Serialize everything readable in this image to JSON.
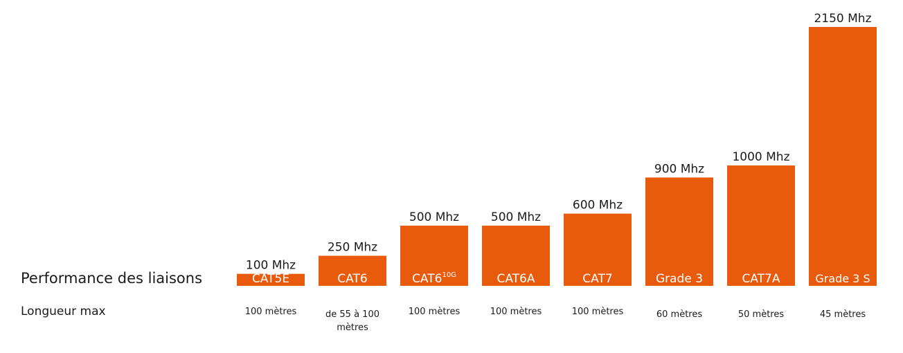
{
  "labels": {
    "performance": "Performance des liaisons",
    "length": "Longueur max"
  },
  "colors": {
    "bar": "#e95b0c",
    "bar_label": "#ffffff",
    "text": "#1a1a1a"
  },
  "chart_data": {
    "type": "bar",
    "categories": [
      "CAT5E",
      "CAT6",
      "CAT6",
      "CAT6A",
      "CAT7",
      "Grade 3",
      "CAT7A",
      "Grade 3 S"
    ],
    "category_superscripts": [
      "",
      "",
      "10G",
      "",
      "",
      "",
      "",
      ""
    ],
    "values": [
      100,
      250,
      500,
      500,
      600,
      900,
      1000,
      2150
    ],
    "value_labels": [
      "100 Mhz",
      "250 Mhz",
      "500 Mhz",
      "500 Mhz",
      "600 Mhz",
      "900 Mhz",
      "1000 Mhz",
      "2150 Mhz"
    ],
    "lengths": [
      "100 mètres",
      "de 55 à 100 mètres",
      "100 mètres",
      "100 mètres",
      "100 mètres",
      "60 mètres",
      "50 mètres",
      "45 mètres"
    ],
    "ylim": [
      0,
      2150
    ],
    "grid": false,
    "legend": "none"
  }
}
